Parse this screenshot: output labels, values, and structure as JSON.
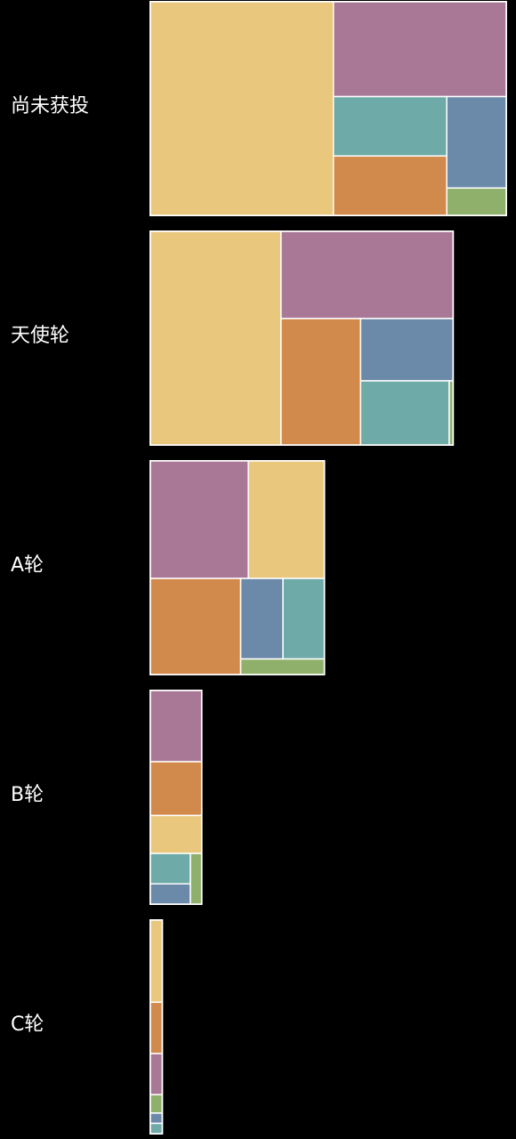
{
  "chart_data": {
    "type": "treemap",
    "title": "",
    "colors": {
      "yellow": "#e9c77d",
      "purple": "#a97896",
      "teal": "#6eaaa7",
      "blue": "#6b89a8",
      "orange": "#d2894c",
      "green": "#8fb06b",
      "background": "#000000",
      "border": "#ffffff"
    },
    "rows": [
      {
        "label": "尚未获投",
        "segments": [
          {
            "color": "yellow",
            "value": 48.2
          },
          {
            "color": "purple",
            "value": 20.2
          },
          {
            "color": "teal",
            "value": 8.3
          },
          {
            "color": "orange",
            "value": 8.3
          },
          {
            "color": "blue",
            "value": 6.7
          },
          {
            "color": "green",
            "value": 2.0
          }
        ]
      },
      {
        "label": "天使轮",
        "segments": [
          {
            "color": "yellow",
            "value": 34.4
          },
          {
            "color": "purple",
            "value": 18.5
          },
          {
            "color": "orange",
            "value": 12.4
          },
          {
            "color": "blue",
            "value": 7.1
          },
          {
            "color": "teal",
            "value": 7.0
          },
          {
            "color": "green",
            "value": 0.3
          }
        ]
      },
      {
        "label": "A轮",
        "segments": [
          {
            "color": "purple",
            "value": 14.2
          },
          {
            "color": "yellow",
            "value": 11.0
          },
          {
            "color": "orange",
            "value": 10.7
          },
          {
            "color": "blue",
            "value": 4.2
          },
          {
            "color": "teal",
            "value": 4.1
          },
          {
            "color": "green",
            "value": 1.6
          }
        ]
      },
      {
        "label": "B轮",
        "segments": [
          {
            "color": "purple",
            "value": 4.5
          },
          {
            "color": "orange",
            "value": 3.4
          },
          {
            "color": "yellow",
            "value": 2.4
          },
          {
            "color": "teal",
            "value": 1.5
          },
          {
            "color": "blue",
            "value": 1.0
          },
          {
            "color": "green",
            "value": 0.7
          }
        ]
      },
      {
        "label": "C轮",
        "segments": [
          {
            "color": "yellow",
            "value": 1.2
          },
          {
            "color": "orange",
            "value": 0.75
          },
          {
            "color": "purple",
            "value": 0.6
          },
          {
            "color": "green",
            "value": 0.27
          },
          {
            "color": "blue",
            "value": 0.15
          },
          {
            "color": "teal",
            "value": 0.15
          }
        ]
      }
    ]
  }
}
